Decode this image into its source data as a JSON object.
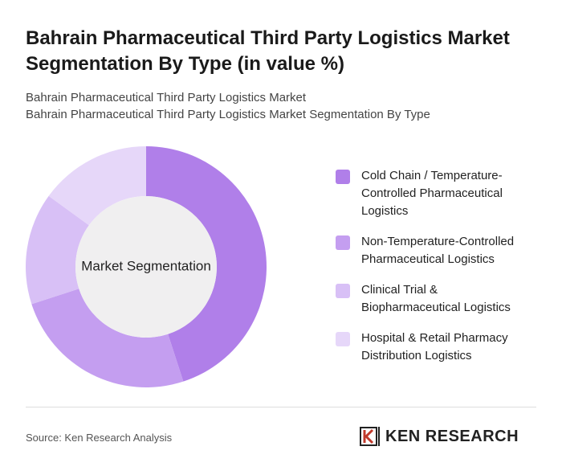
{
  "chart_data": {
    "type": "donut",
    "title": "Bahrain Pharmaceutical Third Party Logistics Market Segmentation By Type (in value %)",
    "subtitle": [
      "Bahrain Pharmaceutical Third Party Logistics Market",
      "Bahrain Pharmaceutical Third Party Logistics Market Segmentation By Type"
    ],
    "center_label": "Market Segmentation",
    "categories": [
      "Cold Chain / Temperature-Controlled Pharmaceutical Logistics",
      "Non-Temperature-Controlled Pharmaceutical Logistics",
      "Clinical Trial & Biopharmaceutical Logistics",
      "Hospital & Retail Pharmacy Distribution Logistics"
    ],
    "values": [
      45,
      25,
      15,
      15
    ],
    "colors": [
      "#b07fe9",
      "#c49ef0",
      "#d8c0f6",
      "#e6d7f9"
    ]
  },
  "footer": {
    "source": "Source: Ken Research Analysis",
    "logo": "KEN RESEARCH"
  }
}
